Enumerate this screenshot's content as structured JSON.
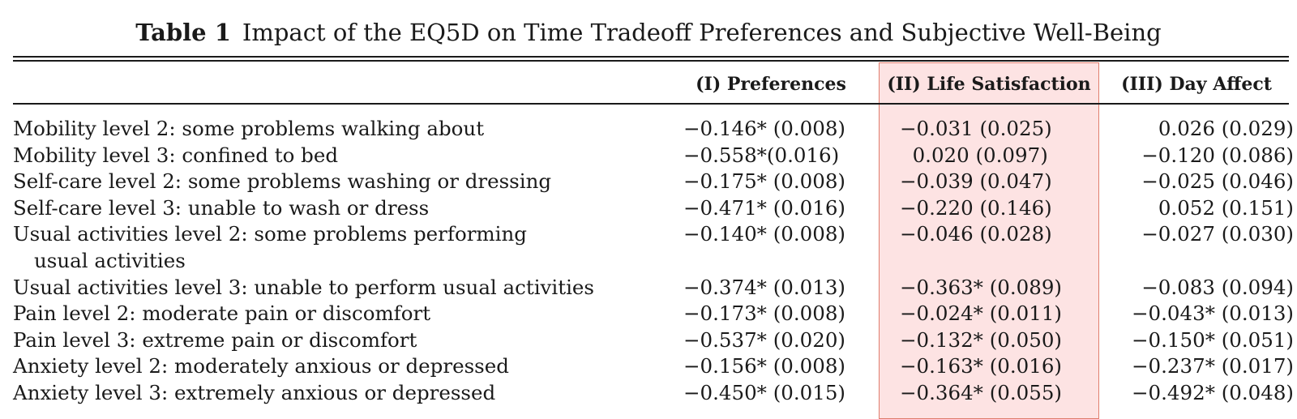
{
  "title": {
    "label": "Table 1",
    "text": "Impact of the EQ5D on Time Tradeoff Preferences and Subjective Well-Being"
  },
  "columns": [
    "(I) Preferences",
    "(II) Life Satisfaction",
    "(III) Day Affect"
  ],
  "highlight_color": "#fde3e3",
  "highlight_border": "#e07e6e",
  "rows": [
    {
      "label": "Mobility level 2: some problems walking about",
      "cont": "",
      "pref": "−0.146* (0.008)",
      "life": "−0.031 (0.025)",
      "day": "0.026 (0.029)"
    },
    {
      "label": "Mobility level 3: confined to bed",
      "cont": "",
      "pref": "−0.558*(0.016)",
      "life": "  0.020 (0.097)",
      "day": "−0.120 (0.086)"
    },
    {
      "label": "Self-care level 2: some problems washing or dressing",
      "cont": "",
      "pref": "−0.175* (0.008)",
      "life": "−0.039 (0.047)",
      "day": "−0.025 (0.046)"
    },
    {
      "label": "Self-care level 3: unable to wash or dress",
      "cont": "",
      "pref": "−0.471* (0.016)",
      "life": "−0.220 (0.146)",
      "day": "0.052 (0.151)"
    },
    {
      "label": "Usual activities level 2: some problems performing",
      "cont": "usual activities",
      "pref": "−0.140* (0.008)",
      "life": "−0.046 (0.028)",
      "day": "−0.027 (0.030)"
    },
    {
      "label": "Usual activities level 3: unable to perform usual activities",
      "cont": "",
      "pref": "−0.374* (0.013)",
      "life": "−0.363* (0.089)",
      "day": "−0.083 (0.094)"
    },
    {
      "label": "Pain level 2: moderate pain or discomfort",
      "cont": "",
      "pref": "−0.173* (0.008)",
      "life": "−0.024* (0.011)",
      "day": "−0.043* (0.013)"
    },
    {
      "label": "Pain level 3: extreme pain or discomfort",
      "cont": "",
      "pref": "−0.537* (0.020)",
      "life": "−0.132* (0.050)",
      "day": "−0.150* (0.051)"
    },
    {
      "label": "Anxiety level 2: moderately anxious or depressed",
      "cont": "",
      "pref": "−0.156* (0.008)",
      "life": "−0.163* (0.016)",
      "day": "−0.237* (0.017)"
    },
    {
      "label": "Anxiety level 3: extremely anxious or depressed",
      "cont": "",
      "pref": "−0.450* (0.015)",
      "life": "−0.364* (0.055)",
      "day": "−0.492* (0.048)"
    }
  ]
}
